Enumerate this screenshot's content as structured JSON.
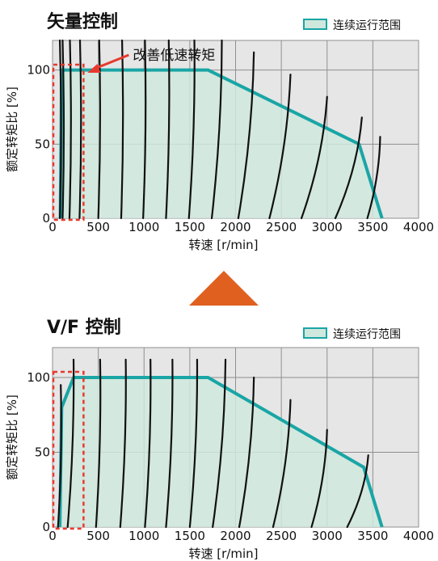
{
  "colors": {
    "plot_bg": "#e6e6e6",
    "grid": "#8f8f8f",
    "region_fill": "#cfe8dd",
    "region_line": "#1aa5a5",
    "curve": "#111111",
    "highlight": "#e8392e",
    "arrow": "#e06020"
  },
  "chart_data": [
    {
      "type": "area",
      "title": "矢量控制",
      "xlabel": "转速 [r/min]",
      "ylabel": "额定转矩比 [%]",
      "xlim": [
        0,
        4000
      ],
      "ylim": [
        0,
        120
      ],
      "x_ticks": [
        "0",
        "500",
        "1000",
        "1500",
        "2000",
        "2500",
        "3000",
        "3500",
        "4000"
      ],
      "y_ticks": [
        "0",
        "50",
        "100"
      ],
      "grid": true,
      "legend": "top-right",
      "legend_label": "连续运行范围",
      "annotation": "改善低速转矩",
      "highlight_range": [
        0,
        330
      ],
      "series": [
        {
          "name": "连续运行范围",
          "x": [
            85,
            100,
            1700,
            3350,
            3600
          ],
          "y": [
            0,
            100,
            100,
            50,
            0
          ]
        }
      ],
      "speed_curves": [
        {
          "top": [
            80,
            120
          ],
          "bottom": [
            80,
            0
          ]
        },
        {
          "top": [
            110,
            120
          ],
          "bottom": [
            110,
            0
          ]
        },
        {
          "top": [
            190,
            120
          ],
          "bottom": [
            185,
            0
          ]
        },
        {
          "top": [
            300,
            120
          ],
          "bottom": [
            295,
            0
          ]
        },
        {
          "top": [
            510,
            120
          ],
          "bottom": [
            500,
            0
          ]
        },
        {
          "top": [
            760,
            120
          ],
          "bottom": [
            750,
            0
          ]
        },
        {
          "top": [
            1010,
            120
          ],
          "bottom": [
            990,
            0
          ]
        },
        {
          "top": [
            1270,
            120
          ],
          "bottom": [
            1240,
            0
          ]
        },
        {
          "top": [
            1550,
            120
          ],
          "bottom": [
            1490,
            0
          ]
        },
        {
          "top": [
            1850,
            120
          ],
          "bottom": [
            1740,
            0
          ]
        },
        {
          "top": [
            2200,
            112
          ],
          "bottom": [
            2030,
            0
          ]
        },
        {
          "top": [
            2600,
            97
          ],
          "bottom": [
            2370,
            0
          ]
        },
        {
          "top": [
            3000,
            82
          ],
          "bottom": [
            2720,
            0
          ]
        },
        {
          "top": [
            3380,
            68
          ],
          "bottom": [
            3090,
            0
          ]
        },
        {
          "top": [
            3580,
            55
          ],
          "bottom": [
            3440,
            0
          ]
        }
      ]
    },
    {
      "type": "area",
      "title": "V/F 控制",
      "xlabel": "转速 [r/min]",
      "ylabel": "额定转矩比 [%]",
      "xlim": [
        0,
        4000
      ],
      "ylim": [
        0,
        120
      ],
      "x_ticks": [
        "0",
        "500",
        "1000",
        "1500",
        "2000",
        "2500",
        "3000",
        "3500",
        "4000"
      ],
      "y_ticks": [
        "0",
        "50",
        "100"
      ],
      "grid": true,
      "legend": "top-right",
      "legend_label": "连续运行范围",
      "highlight_range": [
        0,
        330
      ],
      "series": [
        {
          "name": "连续运行范围",
          "x": [
            80,
            100,
            230,
            1700,
            3400,
            3600
          ],
          "y": [
            0,
            80,
            100,
            100,
            40,
            0
          ]
        }
      ],
      "speed_curves": [
        {
          "top": [
            90,
            95
          ],
          "bottom": [
            60,
            0
          ]
        },
        {
          "top": [
            230,
            112
          ],
          "bottom": [
            165,
            0
          ]
        },
        {
          "top": [
            520,
            112
          ],
          "bottom": [
            475,
            0
          ]
        },
        {
          "top": [
            800,
            112
          ],
          "bottom": [
            740,
            0
          ]
        },
        {
          "top": [
            1070,
            112
          ],
          "bottom": [
            1010,
            0
          ]
        },
        {
          "top": [
            1310,
            112
          ],
          "bottom": [
            1240,
            0
          ]
        },
        {
          "top": [
            1580,
            112
          ],
          "bottom": [
            1500,
            0
          ]
        },
        {
          "top": [
            1890,
            112
          ],
          "bottom": [
            1750,
            0
          ]
        },
        {
          "top": [
            2200,
            100
          ],
          "bottom": [
            2040,
            0
          ]
        },
        {
          "top": [
            2600,
            85
          ],
          "bottom": [
            2410,
            0
          ]
        },
        {
          "top": [
            3000,
            65
          ],
          "bottom": [
            2830,
            0
          ]
        },
        {
          "top": [
            3450,
            48
          ],
          "bottom": [
            3220,
            0
          ]
        }
      ]
    }
  ]
}
